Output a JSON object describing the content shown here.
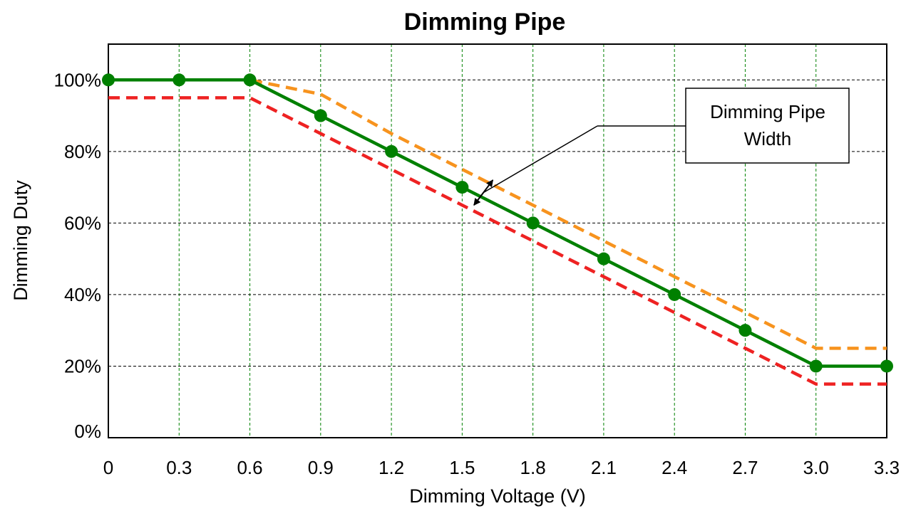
{
  "chart_data": {
    "type": "line",
    "title": "Dimming Pipe",
    "xlabel": "Dimming Voltage (V)",
    "ylabel": "Dimming Duty",
    "x_tick_labels": [
      "0",
      "0.3",
      "0.6",
      "0.9",
      "1.2",
      "1.5",
      "1.8",
      "2.1",
      "2.4",
      "2.7",
      "3.0",
      "3.3"
    ],
    "y_tick_labels": [
      "0%",
      "20%",
      "40%",
      "60%",
      "80%",
      "100%"
    ],
    "xlim": [
      0,
      3.3
    ],
    "ylim": [
      0,
      110
    ],
    "grid": true,
    "series": [
      {
        "style": "dashed",
        "color": "#f7931e",
        "x": [
          0,
          0.3,
          0.6,
          0.9,
          1.2,
          1.5,
          1.8,
          2.1,
          2.4,
          2.7,
          3.0,
          3.3
        ],
        "values": [
          100,
          100,
          100,
          96,
          85,
          75,
          65,
          55,
          45,
          35,
          25,
          25
        ]
      },
      {
        "style": "solid-markers",
        "color": "#008000",
        "x": [
          0,
          0.3,
          0.6,
          0.9,
          1.2,
          1.5,
          1.8,
          2.1,
          2.4,
          2.7,
          3.0,
          3.3
        ],
        "values": [
          100,
          100,
          100,
          90,
          80,
          70,
          60,
          50,
          40,
          30,
          20,
          20
        ]
      },
      {
        "style": "dashed",
        "color": "#ee2222",
        "x": [
          0,
          0.3,
          0.6,
          0.9,
          1.2,
          1.5,
          1.8,
          2.1,
          2.4,
          2.7,
          3.0,
          3.3
        ],
        "values": [
          95,
          95,
          95,
          85,
          75,
          65,
          55,
          45,
          35,
          25,
          15,
          15
        ]
      }
    ],
    "annotation": {
      "line1": "Dimming Pipe",
      "line2": "Width",
      "arrow_from": {
        "x": 1.55,
        "y": 65
      },
      "arrow_to": {
        "x": 1.63,
        "y": 72
      }
    },
    "colors": {
      "x_grid": "#008000",
      "y_grid": "#000000"
    }
  }
}
